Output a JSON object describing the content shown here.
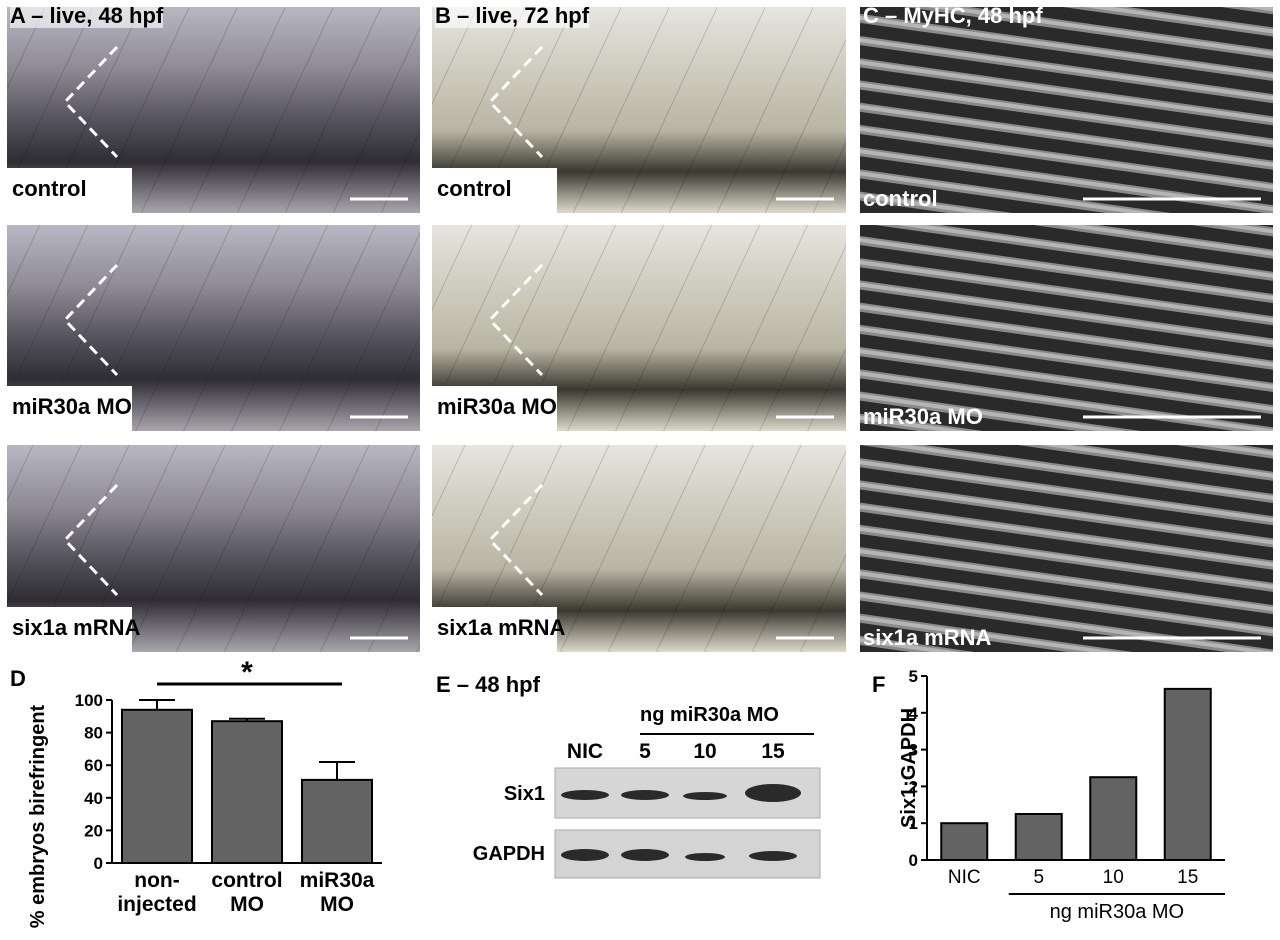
{
  "panels": [
    {
      "label": "A – live, 48 hpf",
      "images": [
        "control",
        "miR30a MO",
        "six1a mRNA"
      ]
    },
    {
      "label": "B – live, 72 hpf",
      "images": [
        "control",
        "miR30a MO",
        "six1a mRNA"
      ]
    },
    {
      "label": "C – MyHC, 48 hpf",
      "images": [
        "control",
        "miR30a MO",
        "six1a mRNA"
      ]
    }
  ],
  "blot": {
    "label": "E – 48 hpf",
    "group_label": "ng miR30a MO",
    "lanes": [
      "NIC",
      "5",
      "10",
      "15"
    ],
    "rows": [
      "Six1",
      "GAPDH"
    ]
  },
  "chart_data": [
    {
      "type": "bar",
      "panel": "D",
      "ylabel": "% embryos birefringent",
      "categories": [
        "non-\ninjected",
        "control\nMO",
        "miR30a\nMO"
      ],
      "values": [
        94,
        87,
        51
      ],
      "errors": [
        6,
        1.5,
        11
      ],
      "color": "#636363",
      "ylim": [
        0,
        100
      ],
      "yticks": [
        0,
        20,
        40,
        60,
        80,
        100
      ],
      "annotation": "*"
    },
    {
      "type": "bar",
      "panel": "F",
      "ylabel": "Six1:GAPDH",
      "categories": [
        "NIC",
        "5",
        "10",
        "15"
      ],
      "xlabel": "ng miR30a MO",
      "values": [
        1,
        1.25,
        2.25,
        4.65
      ],
      "color": "#636363",
      "ylim": [
        0,
        5
      ],
      "yticks": [
        0,
        1,
        2,
        3,
        4,
        5
      ]
    }
  ]
}
